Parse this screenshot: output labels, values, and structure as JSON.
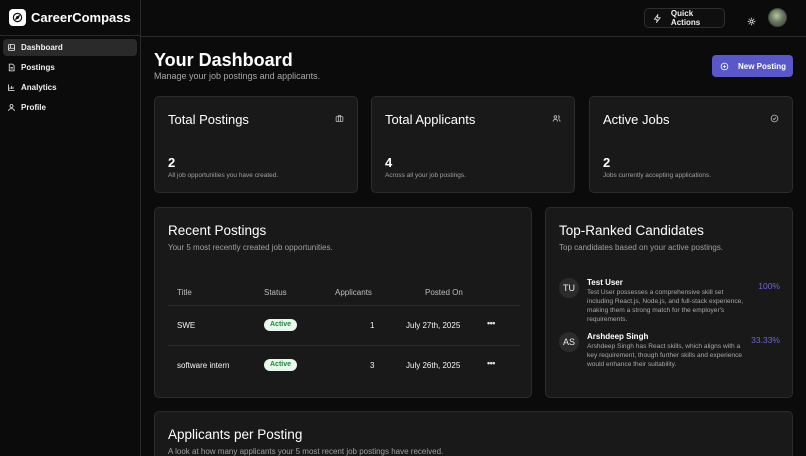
{
  "brand": {
    "name": "CareerCompass"
  },
  "sidebar": {
    "items": [
      {
        "label": "Dashboard",
        "icon": "dashboard-icon",
        "active": true
      },
      {
        "label": "Postings",
        "icon": "document-icon"
      },
      {
        "label": "Analytics",
        "icon": "chart-icon"
      },
      {
        "label": "Profile",
        "icon": "user-icon"
      }
    ]
  },
  "topbar": {
    "quick_actions_label": "Quick Actions"
  },
  "header": {
    "title": "Your Dashboard",
    "subtitle": "Manage your job postings and applicants.",
    "new_posting_label": "New Posting"
  },
  "stats": [
    {
      "title": "Total Postings",
      "value": "2",
      "description": "All job opportunities you have created.",
      "icon": "briefcase-icon"
    },
    {
      "title": "Total Applicants",
      "value": "4",
      "description": "Across all your job postings.",
      "icon": "users-icon"
    },
    {
      "title": "Active Jobs",
      "value": "2",
      "description": "Jobs currently accepting applications.",
      "icon": "check-circle-icon"
    }
  ],
  "recent_postings": {
    "title": "Recent Postings",
    "subtitle": "Your 5 most recently created job opportunities.",
    "columns": [
      "Title",
      "Status",
      "Applicants",
      "Posted On"
    ],
    "rows": [
      {
        "title": "SWE",
        "status": "Active",
        "applicants": "1",
        "posted_on": "July 27th, 2025"
      },
      {
        "title": "software intern",
        "status": "Active",
        "applicants": "3",
        "posted_on": "July 26th, 2025"
      }
    ]
  },
  "candidates": {
    "title": "Top-Ranked Candidates",
    "subtitle": "Top candidates based on your active postings.",
    "items": [
      {
        "initials": "TU",
        "name": "Test User",
        "text": "Test User possesses a comprehensive skill set including React.js, Node.js, and full-stack experience, making them a strong match for the employer's requirements.",
        "score": "100%"
      },
      {
        "initials": "AS",
        "name": "Arshdeep Singh",
        "text": "Arshdeep Singh has React skills, which aligns with a key requirement, though further skills and experience would enhance their suitability.",
        "score": "33.33%"
      }
    ]
  },
  "applicants_chart": {
    "title": "Applicants per Posting",
    "subtitle": "A look at how many applicants your 5 most recent job postings have received."
  },
  "colors": {
    "accent": "#5a57c9",
    "badge_bg": "#e9f7ec",
    "badge_text": "#1d8a3c",
    "score": "#6a66d9"
  }
}
